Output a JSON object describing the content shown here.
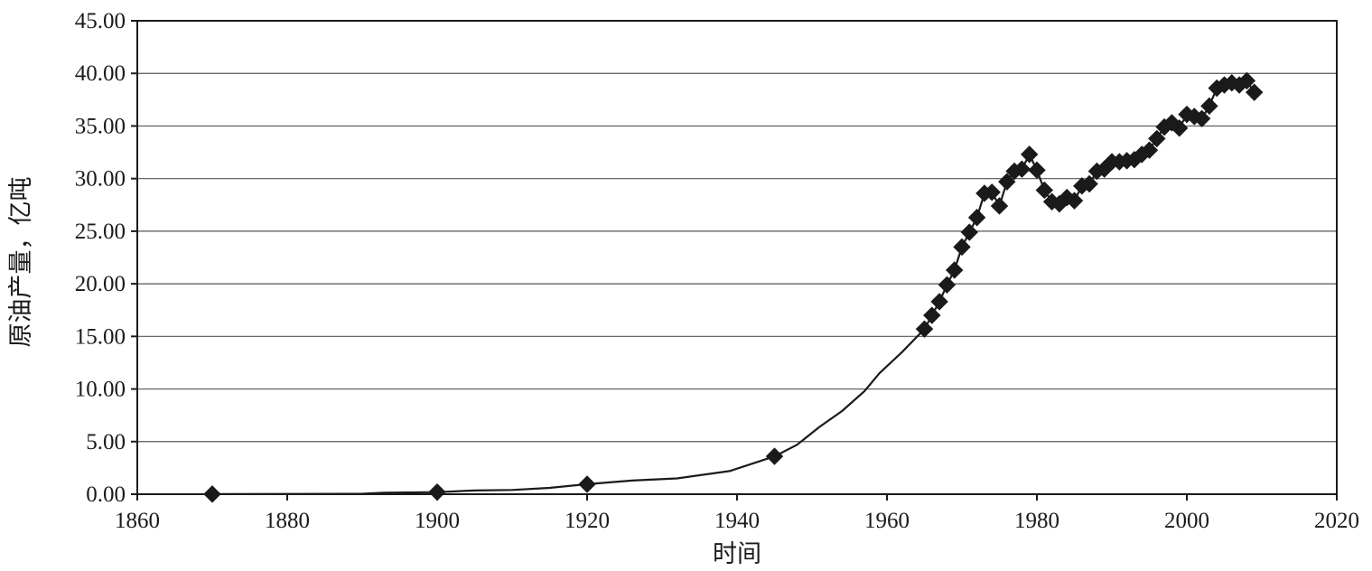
{
  "chart_data": {
    "type": "line",
    "title": "",
    "xlabel": "时间",
    "ylabel": "原油产量，亿吨",
    "xlim": [
      1860,
      2020
    ],
    "ylim": [
      0,
      45
    ],
    "x_ticks": [
      "1860",
      "1880",
      "1900",
      "1920",
      "1940",
      "1960",
      "1980",
      "2000",
      "2020"
    ],
    "y_ticks": [
      "0.00",
      "5.00",
      "10.00",
      "15.00",
      "20.00",
      "25.00",
      "30.00",
      "35.00",
      "40.00",
      "45.00"
    ],
    "grid": "horizontal",
    "legend": "none",
    "colors": {
      "line": "#1a1a1a",
      "marker": "#1a1a1a",
      "grid": "#555555",
      "frame": "#1a1a1a"
    },
    "series": [
      {
        "marker": "diamond",
        "points": [
          [
            1870,
            0.01
          ],
          [
            1880,
            0.03
          ],
          [
            1890,
            0.04
          ],
          [
            1893,
            0.15
          ],
          [
            1900,
            0.2
          ],
          [
            1905,
            0.35
          ],
          [
            1910,
            0.4
          ],
          [
            1915,
            0.6
          ],
          [
            1920,
            0.95
          ],
          [
            1926,
            1.3
          ],
          [
            1932,
            1.5
          ],
          [
            1939,
            2.2
          ],
          [
            1945,
            3.6
          ],
          [
            1948,
            4.7
          ],
          [
            1951,
            6.4
          ],
          [
            1954,
            7.9
          ],
          [
            1957,
            9.8
          ],
          [
            1959,
            11.5
          ],
          [
            1962,
            13.5
          ],
          [
            1965,
            15.7
          ],
          [
            1966,
            17.0
          ],
          [
            1967,
            18.3
          ],
          [
            1968,
            19.9
          ],
          [
            1969,
            21.3
          ],
          [
            1970,
            23.5
          ],
          [
            1971,
            24.9
          ],
          [
            1972,
            26.3
          ],
          [
            1973,
            28.6
          ],
          [
            1974,
            28.7
          ],
          [
            1975,
            27.4
          ],
          [
            1976,
            29.7
          ],
          [
            1977,
            30.7
          ],
          [
            1978,
            30.9
          ],
          [
            1979,
            32.3
          ],
          [
            1980,
            30.8
          ],
          [
            1981,
            28.9
          ],
          [
            1982,
            27.8
          ],
          [
            1983,
            27.6
          ],
          [
            1984,
            28.2
          ],
          [
            1985,
            27.9
          ],
          [
            1986,
            29.3
          ],
          [
            1987,
            29.5
          ],
          [
            1988,
            30.7
          ],
          [
            1989,
            30.9
          ],
          [
            1990,
            31.6
          ],
          [
            1991,
            31.6
          ],
          [
            1992,
            31.7
          ],
          [
            1993,
            31.8
          ],
          [
            1994,
            32.3
          ],
          [
            1995,
            32.7
          ],
          [
            1996,
            33.8
          ],
          [
            1997,
            34.9
          ],
          [
            1998,
            35.3
          ],
          [
            1999,
            34.8
          ],
          [
            2000,
            36.1
          ],
          [
            2001,
            35.9
          ],
          [
            2002,
            35.7
          ],
          [
            2003,
            36.9
          ],
          [
            2004,
            38.6
          ],
          [
            2005,
            38.9
          ],
          [
            2006,
            39.1
          ],
          [
            2007,
            38.9
          ],
          [
            2008,
            39.3
          ],
          [
            2009,
            38.2
          ]
        ],
        "marked_x": [
          1870,
          1900,
          1920,
          1945,
          1965,
          1966,
          1967,
          1968,
          1969,
          1970,
          1971,
          1972,
          1973,
          1974,
          1975,
          1976,
          1977,
          1978,
          1979,
          1980,
          1981,
          1982,
          1983,
          1984,
          1985,
          1986,
          1987,
          1988,
          1989,
          1990,
          1991,
          1992,
          1993,
          1994,
          1995,
          1996,
          1997,
          1998,
          1999,
          2000,
          2001,
          2002,
          2003,
          2004,
          2005,
          2006,
          2007,
          2008,
          2009
        ]
      }
    ]
  }
}
